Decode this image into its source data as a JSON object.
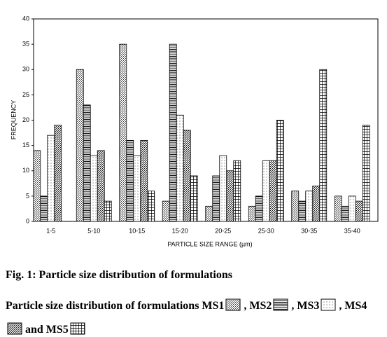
{
  "chart_data": {
    "type": "bar",
    "ylabel": "FREQUENCY",
    "xlabel": "PARTICLE SIZE RANGE (µm)",
    "categories": [
      "1-5",
      "5-10",
      "10-15",
      "15-20",
      "20-25",
      "25-30",
      "30-35",
      "35-40"
    ],
    "series": [
      {
        "name": "MS1",
        "color": "#000000",
        "pattern": "dots",
        "values": [
          14,
          30,
          35,
          4,
          3,
          3,
          6,
          5
        ]
      },
      {
        "name": "MS2",
        "color": "#000000",
        "pattern": "hlines",
        "values": [
          5,
          23,
          16,
          35,
          9,
          5,
          4,
          3
        ]
      },
      {
        "name": "MS3",
        "color": "#000000",
        "pattern": "sparse-dots",
        "values": [
          17,
          13,
          13,
          21,
          13,
          12,
          6,
          5
        ]
      },
      {
        "name": "MS4",
        "color": "#000000",
        "pattern": "diagonal",
        "values": [
          19,
          14,
          16,
          18,
          10,
          12,
          7,
          4
        ]
      },
      {
        "name": "MS5",
        "color": "#000000",
        "pattern": "grid",
        "values": [
          0,
          4,
          6,
          9,
          12,
          20,
          30,
          19
        ]
      }
    ],
    "ylim": [
      0,
      40
    ],
    "yticks": [
      0,
      5,
      10,
      15,
      20,
      25,
      30,
      35,
      40
    ],
    "caption": "Fig. 1: Particle size distribution of formulations",
    "legend_text": "Particle size distribution of formulations",
    "legend_joiners": [
      ",",
      ",",
      ",",
      "and"
    ]
  }
}
